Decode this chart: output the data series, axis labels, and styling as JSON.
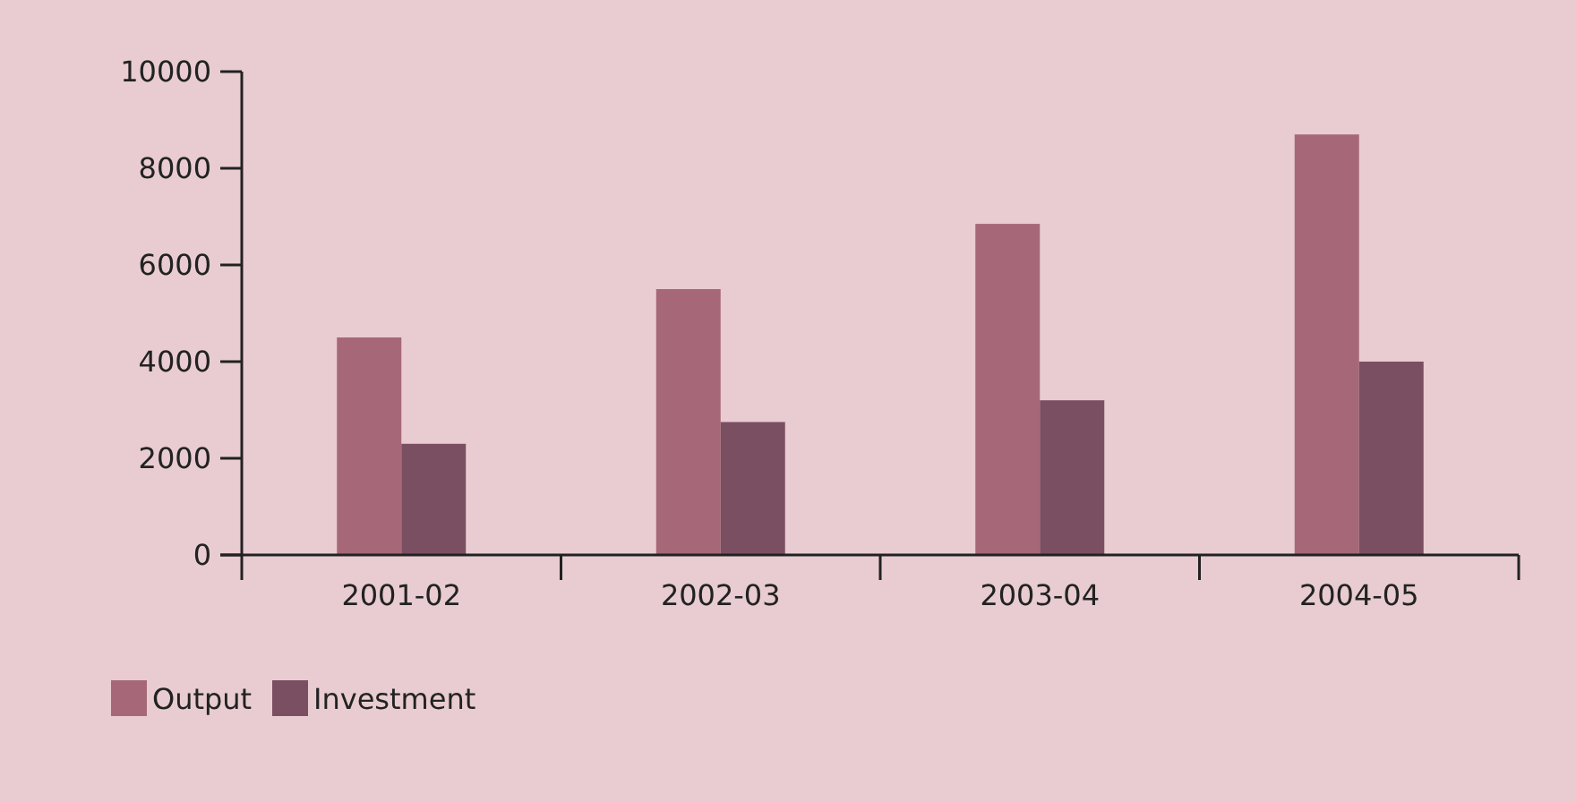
{
  "chart_data": {
    "type": "bar",
    "categories": [
      "2001-02",
      "2002-03",
      "2003-04",
      "2004-05"
    ],
    "series": [
      {
        "name": "Output",
        "color": "#a66878",
        "values": [
          4500,
          5500,
          6850,
          8700
        ]
      },
      {
        "name": "Investment",
        "color": "#7b4f62",
        "values": [
          2300,
          2750,
          3200,
          4000
        ]
      }
    ],
    "ylim": [
      0,
      10000
    ],
    "yticks": [
      0,
      2000,
      4000,
      6000,
      8000,
      10000
    ],
    "grid": false,
    "legend": "bottom left"
  }
}
